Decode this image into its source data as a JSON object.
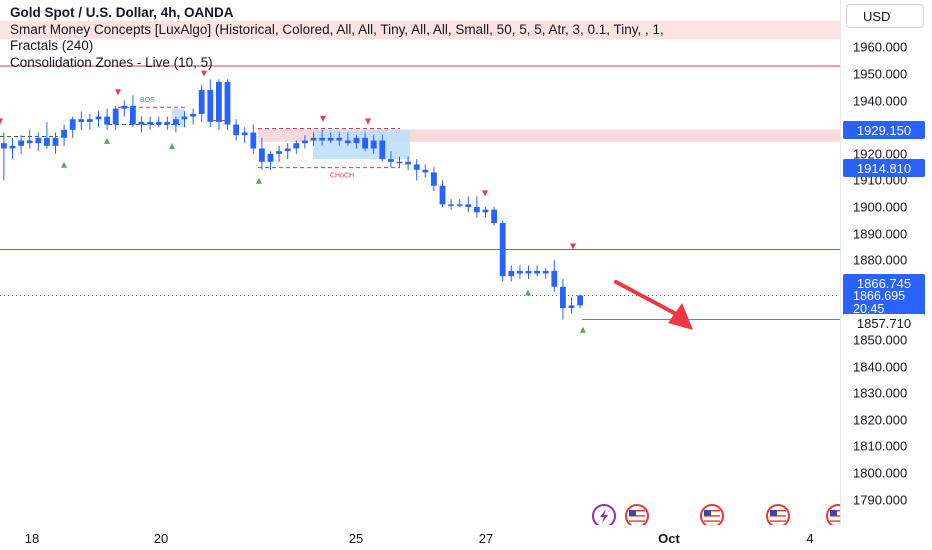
{
  "legend": {
    "symbol_line": "Gold Spot / U.S. Dollar, 4h, OANDA",
    "indicator_1": "Smart Money Concepts [LuxAlgo] (Historical, Colored, All, All, Tiny, All, All, Small, 50, 5, 5, Atr, 3, 0.1, Tiny, , 1,",
    "indicator_2": "Fractals (240)",
    "indicator_3": "Consolidation Zones - Live (10, 5)"
  },
  "currency_button": "USD",
  "price_scale": {
    "ticks": [
      "1960.000",
      "1950.000",
      "1940.000",
      "1930.000",
      "1920.000",
      "1910.000",
      "1900.000",
      "1890.000",
      "1880.000",
      "1870.000",
      "1860.000",
      "1850.000",
      "1840.000",
      "1830.000",
      "1820.000",
      "1810.000",
      "1800.000",
      "1790.000"
    ],
    "tags": {
      "resistance": "1929.150",
      "support": "1914.810",
      "last_price": "1866.745",
      "bid": "1866.695",
      "countdown": "20:45",
      "low_line": "1857.710"
    }
  },
  "time_scale": [
    "18",
    "20",
    "25",
    "27",
    "Oct",
    "4"
  ],
  "annotations": {
    "bos": "BOS",
    "choch": "CHoCH"
  },
  "colors": {
    "candle": "#2962ff",
    "supply_zone": "#f8c9cd",
    "consolidation": "#bbdefb",
    "red_line": "#f23645",
    "teal_line": "#26a69a",
    "arrow": "#f23645",
    "price_tag_blue": "#2962ff",
    "up_marker": "#4caf50",
    "down_marker": "#f23645"
  },
  "events": [
    {
      "icon": "lightning-icon"
    },
    {
      "icon": "us-flag-icon"
    },
    {
      "icon": "us-flag-icon"
    },
    {
      "icon": "us-flag-icon"
    },
    {
      "icon": "us-flag-icon"
    }
  ],
  "chart_data": {
    "type": "candlestick",
    "price_range": [
      1786,
      1969
    ],
    "candles": [
      {
        "o": 1924,
        "h": 1928,
        "l": 1910,
        "c": 1922
      },
      {
        "o": 1922,
        "h": 1926,
        "l": 1918,
        "c": 1923
      },
      {
        "o": 1923,
        "h": 1927,
        "l": 1920,
        "c": 1925
      },
      {
        "o": 1925,
        "h": 1929,
        "l": 1922,
        "c": 1924
      },
      {
        "o": 1924,
        "h": 1928,
        "l": 1921,
        "c": 1926
      },
      {
        "o": 1926,
        "h": 1932,
        "l": 1922,
        "c": 1923
      },
      {
        "o": 1923,
        "h": 1928,
        "l": 1920,
        "c": 1926
      },
      {
        "o": 1926,
        "h": 1931,
        "l": 1923,
        "c": 1929
      },
      {
        "o": 1929,
        "h": 1934,
        "l": 1926,
        "c": 1933
      },
      {
        "o": 1933,
        "h": 1936,
        "l": 1929,
        "c": 1932
      },
      {
        "o": 1932,
        "h": 1935,
        "l": 1929,
        "c": 1933
      },
      {
        "o": 1933,
        "h": 1936,
        "l": 1930,
        "c": 1934
      },
      {
        "o": 1934,
        "h": 1937,
        "l": 1929,
        "c": 1931
      },
      {
        "o": 1931,
        "h": 1938,
        "l": 1929,
        "c": 1937
      },
      {
        "o": 1937,
        "h": 1940,
        "l": 1934,
        "c": 1938
      },
      {
        "o": 1938,
        "h": 1942,
        "l": 1930,
        "c": 1931
      },
      {
        "o": 1931,
        "h": 1934,
        "l": 1928,
        "c": 1932
      },
      {
        "o": 1932,
        "h": 1934,
        "l": 1929,
        "c": 1931
      },
      {
        "o": 1931,
        "h": 1934,
        "l": 1930,
        "c": 1932
      },
      {
        "o": 1932,
        "h": 1934,
        "l": 1929,
        "c": 1931
      },
      {
        "o": 1931,
        "h": 1934,
        "l": 1928,
        "c": 1933
      },
      {
        "o": 1933,
        "h": 1936,
        "l": 1930,
        "c": 1934
      },
      {
        "o": 1934,
        "h": 1937,
        "l": 1931,
        "c": 1935
      },
      {
        "o": 1935,
        "h": 1946,
        "l": 1932,
        "c": 1944
      },
      {
        "o": 1944,
        "h": 1948,
        "l": 1930,
        "c": 1932
      },
      {
        "o": 1932,
        "h": 1948,
        "l": 1929,
        "c": 1947
      },
      {
        "o": 1947,
        "h": 1948,
        "l": 1929,
        "c": 1931
      },
      {
        "o": 1931,
        "h": 1933,
        "l": 1925,
        "c": 1927
      },
      {
        "o": 1927,
        "h": 1930,
        "l": 1924,
        "c": 1928
      },
      {
        "o": 1928,
        "h": 1931,
        "l": 1920,
        "c": 1922
      },
      {
        "o": 1922,
        "h": 1926,
        "l": 1914,
        "c": 1917
      },
      {
        "o": 1917,
        "h": 1921,
        "l": 1914,
        "c": 1920
      },
      {
        "o": 1920,
        "h": 1923,
        "l": 1917,
        "c": 1921
      },
      {
        "o": 1921,
        "h": 1924,
        "l": 1918,
        "c": 1922
      },
      {
        "o": 1922,
        "h": 1925,
        "l": 1920,
        "c": 1924
      },
      {
        "o": 1924,
        "h": 1927,
        "l": 1922,
        "c": 1925
      },
      {
        "o": 1925,
        "h": 1928,
        "l": 1923,
        "c": 1926
      },
      {
        "o": 1926,
        "h": 1929,
        "l": 1923,
        "c": 1925
      },
      {
        "o": 1925,
        "h": 1928,
        "l": 1924,
        "c": 1926
      },
      {
        "o": 1926,
        "h": 1928,
        "l": 1923,
        "c": 1925
      },
      {
        "o": 1925,
        "h": 1928,
        "l": 1923,
        "c": 1924
      },
      {
        "o": 1924,
        "h": 1927,
        "l": 1922,
        "c": 1926
      },
      {
        "o": 1926,
        "h": 1928,
        "l": 1921,
        "c": 1922
      },
      {
        "o": 1922,
        "h": 1927,
        "l": 1920,
        "c": 1925
      },
      {
        "o": 1925,
        "h": 1927,
        "l": 1917,
        "c": 1918
      },
      {
        "o": 1918,
        "h": 1921,
        "l": 1915,
        "c": 1917
      },
      {
        "o": 1917,
        "h": 1919,
        "l": 1915,
        "c": 1917
      },
      {
        "o": 1917,
        "h": 1919,
        "l": 1914,
        "c": 1916
      },
      {
        "o": 1916,
        "h": 1918,
        "l": 1910,
        "c": 1914
      },
      {
        "o": 1914,
        "h": 1916,
        "l": 1911,
        "c": 1913
      },
      {
        "o": 1913,
        "h": 1915,
        "l": 1906,
        "c": 1908
      },
      {
        "o": 1908,
        "h": 1910,
        "l": 1900,
        "c": 1901
      },
      {
        "o": 1901,
        "h": 1903,
        "l": 1899,
        "c": 1901
      },
      {
        "o": 1901,
        "h": 1903,
        "l": 1900,
        "c": 1901
      },
      {
        "o": 1901,
        "h": 1904,
        "l": 1898,
        "c": 1900
      },
      {
        "o": 1900,
        "h": 1904,
        "l": 1896,
        "c": 1898
      },
      {
        "o": 1898,
        "h": 1900,
        "l": 1896,
        "c": 1899
      },
      {
        "o": 1899,
        "h": 1900,
        "l": 1893,
        "c": 1894
      },
      {
        "o": 1894,
        "h": 1895,
        "l": 1872,
        "c": 1874
      },
      {
        "o": 1874,
        "h": 1878,
        "l": 1872,
        "c": 1876
      },
      {
        "o": 1876,
        "h": 1878,
        "l": 1873,
        "c": 1875
      },
      {
        "o": 1875,
        "h": 1878,
        "l": 1873,
        "c": 1876
      },
      {
        "o": 1876,
        "h": 1878,
        "l": 1874,
        "c": 1875
      },
      {
        "o": 1875,
        "h": 1877,
        "l": 1873,
        "c": 1876
      },
      {
        "o": 1876,
        "h": 1880,
        "l": 1868,
        "c": 1870
      },
      {
        "o": 1870,
        "h": 1873,
        "l": 1857.71,
        "c": 1862
      },
      {
        "o": 1862,
        "h": 1866,
        "l": 1860,
        "c": 1863
      },
      {
        "o": 1863,
        "h": 1867,
        "l": 1862,
        "c": 1866.745
      }
    ],
    "levels": {
      "supply_zone": [
        1924.5,
        1929.15
      ],
      "support_line": 1914.81,
      "red_line": 1884,
      "low_line": 1857.71,
      "top_zone": [
        1963,
        1970
      ],
      "top_line": 1953
    }
  }
}
